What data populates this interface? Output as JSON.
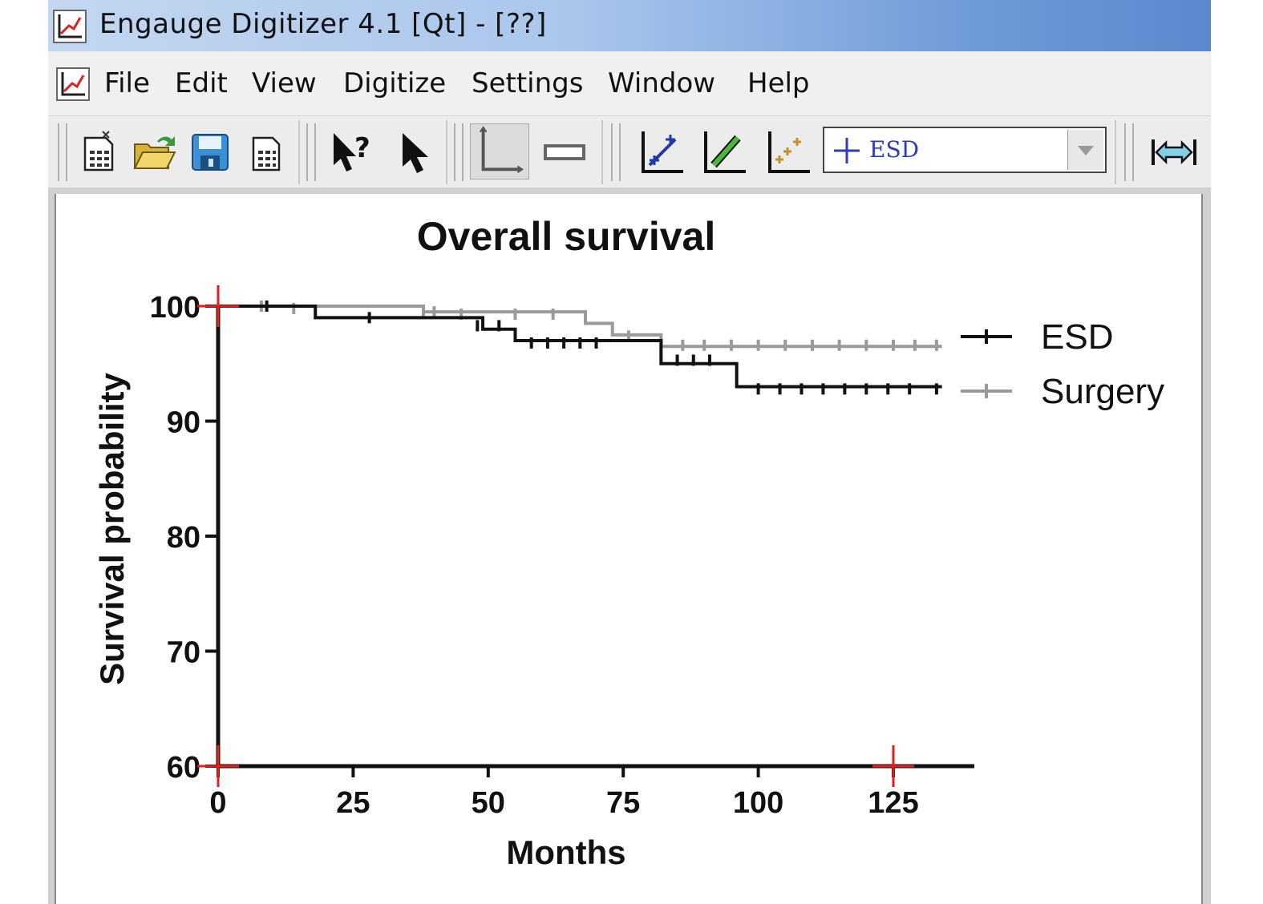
{
  "window": {
    "title": "Engauge Digitizer 4.1 [Qt] - [??]"
  },
  "menu": {
    "items": [
      "File",
      "Edit",
      "View",
      "Digitize",
      "Settings",
      "Window",
      "Help"
    ]
  },
  "toolbar": {
    "icons": [
      "new-document-icon",
      "open-folder-icon",
      "save-disk-icon",
      "document-properties-icon",
      "whats-this-help-icon",
      "select-arrow-icon",
      "axis-point-icon",
      "scale-bar-icon",
      "curve-point-icon",
      "segment-fill-icon",
      "point-match-icon",
      "zoom-fit-width-icon"
    ],
    "curve_select": {
      "value": "ESD"
    }
  },
  "colors": {
    "esd": "#111111",
    "surgery": "#9a9a9a",
    "axis_marker": "#e02020",
    "combo_text": "#2d3bbf"
  },
  "chart_data": {
    "type": "line",
    "step": true,
    "title": "Overall survival",
    "xlabel": "Months",
    "ylabel": "Survival probability",
    "xlim": [
      0,
      140
    ],
    "ylim": [
      60,
      100
    ],
    "xticks": [
      0,
      25,
      50,
      75,
      100,
      125
    ],
    "yticks": [
      60,
      70,
      80,
      90,
      100
    ],
    "legend": "right",
    "axis_markers": [
      [
        0,
        100
      ],
      [
        0,
        60
      ],
      [
        125,
        60
      ]
    ],
    "series": [
      {
        "name": "ESD",
        "color": "#111111",
        "x": [
          0,
          18,
          40,
          49,
          55,
          60,
          82,
          96,
          134
        ],
        "y": [
          100,
          99,
          99,
          98,
          97,
          97,
          95,
          93,
          93
        ],
        "censored": [
          [
            9,
            100
          ],
          [
            28,
            99
          ],
          [
            48,
            98.3
          ],
          [
            52,
            98.3
          ],
          [
            58,
            96.8
          ],
          [
            61,
            96.8
          ],
          [
            64,
            96.8
          ],
          [
            67,
            96.8
          ],
          [
            70,
            96.8
          ],
          [
            85,
            95.3
          ],
          [
            88,
            95.3
          ],
          [
            91,
            95.3
          ],
          [
            100,
            92.8
          ],
          [
            104,
            92.8
          ],
          [
            108,
            92.8
          ],
          [
            112,
            92.8
          ],
          [
            116,
            92.8
          ],
          [
            120,
            92.8
          ],
          [
            124,
            92.8
          ],
          [
            128,
            92.8
          ],
          [
            133,
            92.8
          ]
        ]
      },
      {
        "name": "Surgery",
        "color": "#9a9a9a",
        "x": [
          0,
          38,
          68,
          73,
          82,
          134
        ],
        "y": [
          100,
          99.5,
          98.5,
          97.5,
          96.5,
          96.5
        ],
        "censored": [
          [
            8,
            100
          ],
          [
            14,
            99.8
          ],
          [
            38,
            99.6
          ],
          [
            40,
            99.5
          ],
          [
            45,
            99.3
          ],
          [
            55,
            99.3
          ],
          [
            62,
            99.3
          ],
          [
            76,
            97.4
          ],
          [
            86,
            96.6
          ],
          [
            90,
            96.6
          ],
          [
            95,
            96.6
          ],
          [
            100,
            96.6
          ],
          [
            105,
            96.6
          ],
          [
            110,
            96.6
          ],
          [
            115,
            96.6
          ],
          [
            120,
            96.6
          ],
          [
            125,
            96.6
          ],
          [
            129,
            96.6
          ],
          [
            133,
            96.6
          ]
        ]
      }
    ]
  }
}
